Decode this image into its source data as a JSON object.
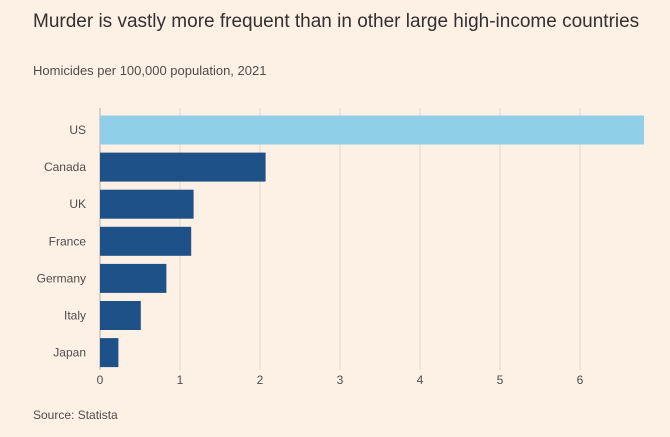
{
  "header": {
    "title": "Murder is vastly more frequent than in other large high-income countries",
    "subtitle": "Homicides per 100,000 population, 2021"
  },
  "footer": {
    "source": "Source: Statista"
  },
  "colors": {
    "background": "#fdf1e6",
    "highlight_bar": "#8fcfe8",
    "default_bar": "#1f5189",
    "gridline": "#e3d8ce",
    "axis_text": "#4f4c4a"
  },
  "chart_data": {
    "type": "bar",
    "orientation": "horizontal",
    "categories": [
      "US",
      "Canada",
      "UK",
      "France",
      "Germany",
      "Italy",
      "Japan"
    ],
    "values": [
      6.8,
      2.07,
      1.17,
      1.14,
      0.83,
      0.51,
      0.23
    ],
    "highlighted": [
      "US"
    ],
    "title": "Murder is vastly more frequent than in other large high-income countries",
    "subtitle": "Homicides per 100,000 population, 2021",
    "xlabel": "",
    "ylabel": "",
    "xlim": [
      0,
      6.8
    ],
    "xticks": [
      0,
      1,
      2,
      3,
      4,
      5,
      6
    ],
    "grid": true,
    "source": "Source: Statista"
  }
}
